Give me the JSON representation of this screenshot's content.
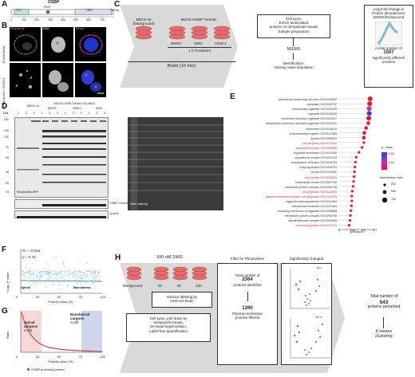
{
  "panels": {
    "A": {
      "label": "A",
      "protein": "OSBP",
      "aa_length": "785 aa",
      "ticks": [
        "1",
        "100",
        "200",
        "300",
        "400",
        "500",
        "600",
        "700"
      ],
      "domains": [
        "PH",
        "FFAT",
        "ORD"
      ]
    },
    "B": {
      "label": "B",
      "row1_label": "10 min biotin",
      "row2_label": "10 min biotin + OSW-1",
      "channel_labels": [
        "Streptavidin",
        "DNA",
        "Merge"
      ]
    },
    "C": {
      "label": "C",
      "wt_label": "MDCK wt",
      "wt_sub": "(background)",
      "turbo_label": "MDCK-OSBP-TurboID",
      "conditions": [
        "DMSO",
        "SWG",
        "OSW-1"
      ],
      "treatment": "1 h Treatment",
      "biotin": "Biotin (10 min)",
      "step1": "Cell Lysis,",
      "step1b": "Enrich biotinylated",
      "step1c": "proteins on Streptavidin beads",
      "step1d": "Sample preparation",
      "step2": "MS/MS",
      "step3": "Identification,",
      "step3b": "missing value imputation",
      "result_title": "Log₂Fold change in",
      "result_title2": "Protein abundancies:",
      "result_title3": "DMSO/background",
      "total_text": "A total number of",
      "total_number": "1507",
      "total_text2": "significantly different",
      "total_text3": "proteins"
    },
    "D": {
      "label": "D",
      "header_wt": "MDCK wt",
      "header_turbo": "MDCK-OSBP-TurboID-HA c#612",
      "groups": [
        "DMSO",
        "OSW-1",
        "SWG"
      ],
      "lanes": [
        "1",
        "2",
        "3",
        "1",
        "2",
        "3",
        "1",
        "2",
        "3",
        "1",
        "2",
        "3"
      ],
      "kda": "kDa",
      "markers": [
        "250",
        "130",
        "100",
        "70",
        "55",
        "35",
        "25",
        "15"
      ],
      "blot1_label": "Streptavidin-HRP",
      "blot2_label": "OSBP-TurboID-HA",
      "blot3_label": "β-actin",
      "silver_label": "Silver staining"
    },
    "E": {
      "label": "E",
      "terms": [
        {
          "term": "intracellular anatomical structure GO:0005622",
          "hl": false
        },
        {
          "term": "cytoplasm GO:0005737",
          "hl": false
        },
        {
          "term": "intracellular organelle GO:0043229",
          "hl": false
        },
        {
          "term": "organelle GO:0043226",
          "hl": false
        },
        {
          "term": "membrane-bounded organelle GO:0043227",
          "hl": false
        },
        {
          "term": "intracellular membrane-bounded organelle GO:0043231",
          "hl": false
        },
        {
          "term": "membrane GO:0016020",
          "hl": false
        },
        {
          "term": "endomembrane system GO:0012505",
          "hl": false
        },
        {
          "term": "cytosol GO:0005829",
          "hl": false
        },
        {
          "term": "cell periphery GO:0071944",
          "hl": true
        },
        {
          "term": "plasma membrane GO:0005886",
          "hl": true
        },
        {
          "term": "organelle membrane GO:0031090",
          "hl": false
        },
        {
          "term": "cytoplasmic vesicle GO:0031410",
          "hl": false
        },
        {
          "term": "endoplasmic reticulum GO:0005783",
          "hl": false
        },
        {
          "term": "Golgi apparatus GO:0005794",
          "hl": false
        },
        {
          "term": "vesicle GO:0031982",
          "hl": false
        },
        {
          "term": "cell junction GO:0030054",
          "hl": true
        },
        {
          "term": "intracellular vesicle GO:0097708",
          "hl": false
        },
        {
          "term": "membrane protein complex GO:0098796",
          "hl": false
        },
        {
          "term": "cell projection GO:0042995",
          "hl": true
        },
        {
          "term": "plasma membrane bounded cell projection GO:0120025",
          "hl": true
        },
        {
          "term": "organelle subcompartment GO:0031984",
          "hl": false
        },
        {
          "term": "extracellular exosome GO:0070062",
          "hl": false
        },
        {
          "term": "bounding membrane of organelle GO:0098588",
          "hl": false
        },
        {
          "term": "membrane protein complex GO:0098796",
          "hl": false
        },
        {
          "term": "supramolecular complex GO:0099080",
          "hl": false
        },
        {
          "term": "anchoring junction GO:0070161",
          "hl": true
        }
      ],
      "precision": [
        0.71,
        0.7,
        0.69,
        0.69,
        0.68,
        0.67,
        0.62,
        0.58,
        0.57,
        0.57,
        0.53,
        0.46,
        0.4,
        0.38,
        0.37,
        0.36,
        0.35,
        0.34,
        0.33,
        0.31,
        0.3,
        0.3,
        0.29,
        0.28,
        0.27,
        0.26,
        0.24
      ],
      "x_axis_label": "precision",
      "x_ticks": [
        "0",
        "0.25",
        "0.5",
        "0.75"
      ],
      "legend_p_title": "p. value",
      "legend_p_ticks": [
        "0.02",
        "0.01"
      ],
      "legend_size_title": "intersection size",
      "legend_size_ticks": [
        "250",
        "500",
        "750"
      ],
      "highlight_color": "#d62728"
    },
    "F": {
      "label": "F",
      "r_text": "R = −0.016",
      "p_text": "p = 0.72",
      "ylabel": "−Log₁₀ P value",
      "xlabel": "Polarity value (%)",
      "yticks": [
        "0",
        "2",
        "4",
        "6",
        "8"
      ],
      "xticks": [
        "0",
        "25",
        "50",
        "75",
        "100"
      ],
      "apical": "Apical",
      "basolateral": "Basolateral"
    },
    "G": {
      "label": "G",
      "ylabel": "Rank",
      "xlabel": "Polarity value (%)",
      "yticks": [
        "0",
        "500",
        "1000",
        "1500"
      ],
      "xticks": [
        "0",
        "25",
        "50",
        "75",
        "100"
      ],
      "apical_title": "Apical",
      "apical_title2": "cargoes",
      "apical_n": "n=86",
      "baso_title": "Basolateral",
      "baso_title2": "cargoes",
      "baso_n": "n=65",
      "legend": "OSBP proximity partner"
    },
    "H": {
      "label": "H",
      "treatment": "100 nM SWG",
      "background": "Background",
      "timepoints": [
        "0h",
        "6h",
        "12h"
      ],
      "surface": "Surface labeling by",
      "surface2": "NHS-SS-biotin",
      "lysis": "Cell Lysis, pull-down by",
      "lysis2": "streptavidin beads,",
      "lysis3": "On-bead trypsinization,",
      "lysis4": "Label-free quantification",
      "filter_title": "Filter for PM proteins",
      "total_of": "Total number of",
      "total_num": "2364",
      "identified": "proteins identified",
      "pm_num": "1390",
      "pm_text": "Plasma membrane",
      "pm_text2": "proteins filtered",
      "sig_title": "Significantly changed",
      "v6": "6 h",
      "v12": "12 h",
      "volcano_x": "Log₂ Fold change",
      "volcano_y": "−Log₁₀ P value",
      "final_total": "Total number of",
      "final_num": "543",
      "final_text": "proteins perturbed",
      "kmeans": "K-means",
      "kmeans2": "clustering"
    }
  }
}
